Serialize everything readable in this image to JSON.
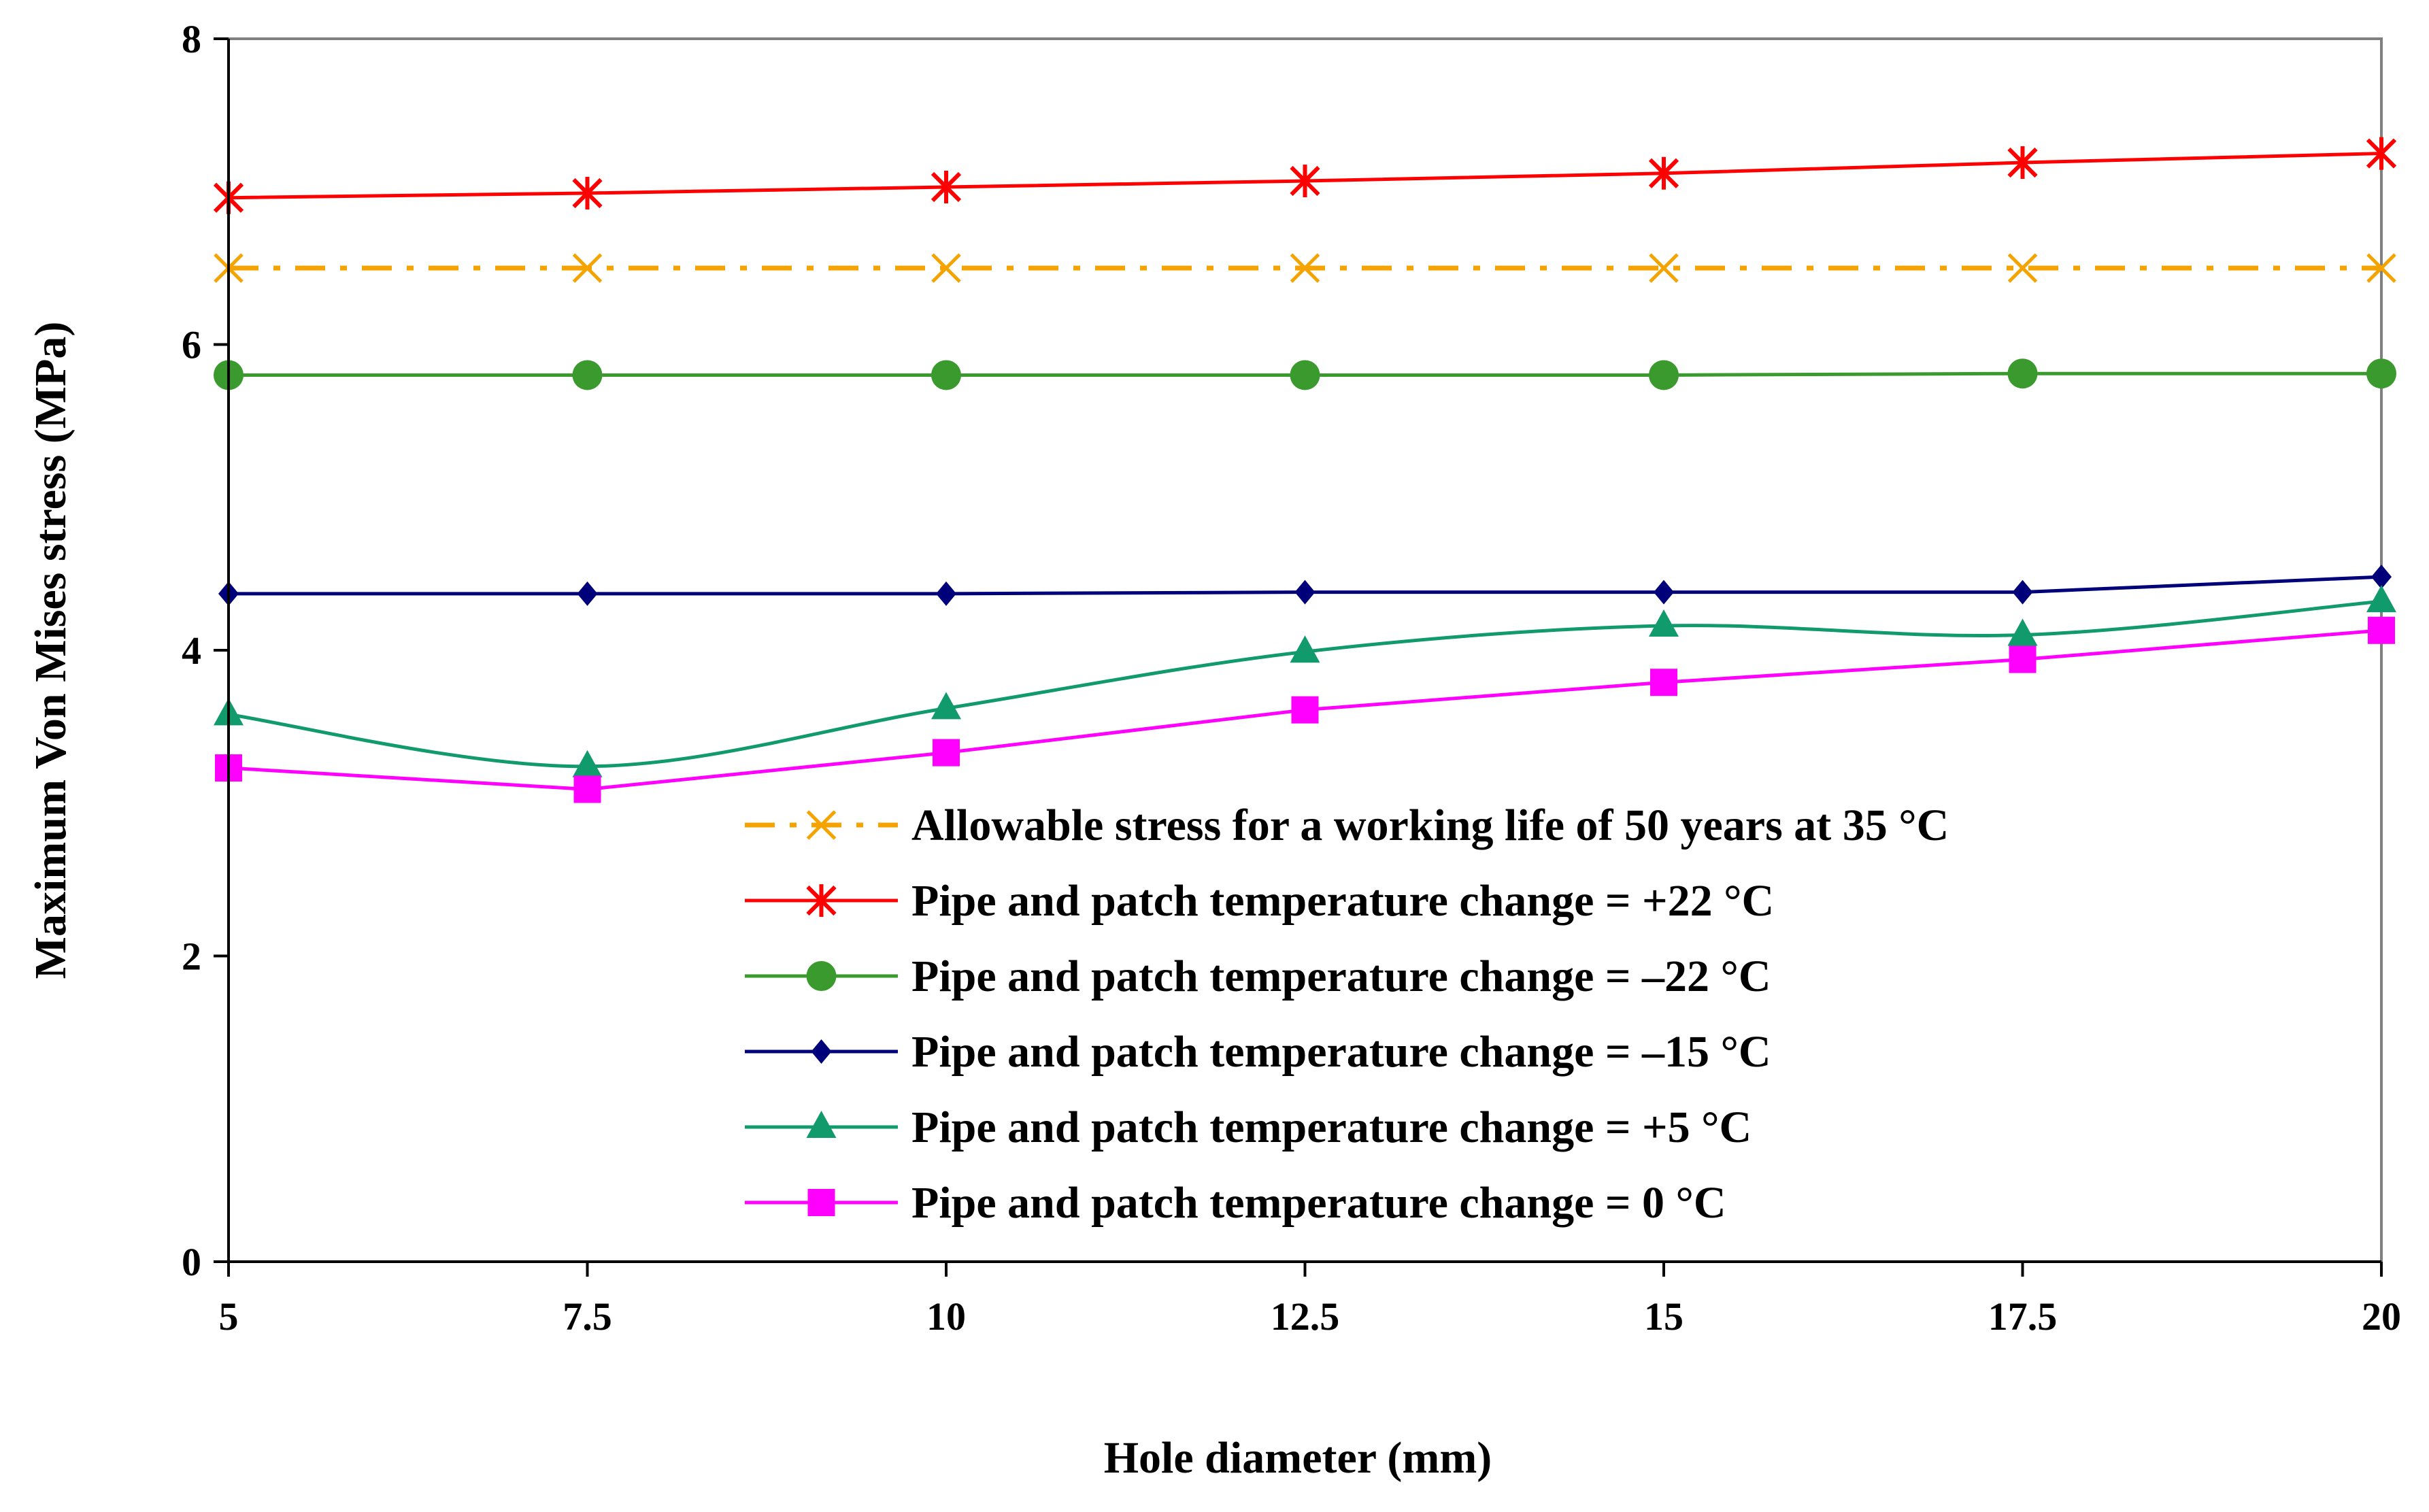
{
  "chart_data": {
    "type": "line",
    "title": "",
    "xlabel": "Hole diameter (mm)",
    "ylabel": "Maximum Von Mises stress (MPa)",
    "xlim": [
      5,
      20
    ],
    "ylim": [
      0,
      8
    ],
    "x_ticks": [
      "5",
      "7.5",
      "10",
      "12.5",
      "15",
      "17.5",
      "20"
    ],
    "y_ticks": [
      "0",
      "2",
      "4",
      "6",
      "8"
    ],
    "x": [
      5,
      7.5,
      10,
      12.5,
      15,
      17.5,
      20
    ],
    "grid": false,
    "legend_position": "bottom-right",
    "series": [
      {
        "name": "Allowable stress for a working life of 50 years at 35 °C",
        "values": [
          6.5,
          6.5,
          6.5,
          6.5,
          6.5,
          6.5,
          6.5
        ],
        "color": "#F5A300",
        "marker": "x",
        "dash": "dashdot",
        "smooth": false
      },
      {
        "name": "Pipe and patch temperature change = +22 °C",
        "values": [
          6.96,
          6.99,
          7.03,
          7.07,
          7.12,
          7.19,
          7.25
        ],
        "color": "#FF0000",
        "marker": "asterisk",
        "dash": "solid",
        "smooth": false
      },
      {
        "name": "Pipe and patch temperature change = –22 °C",
        "values": [
          5.8,
          5.8,
          5.8,
          5.8,
          5.8,
          5.81,
          5.81
        ],
        "color": "#3A9A2E",
        "marker": "circle",
        "dash": "solid",
        "smooth": false
      },
      {
        "name": "Pipe and patch temperature change = –15 °C",
        "values": [
          4.37,
          4.37,
          4.37,
          4.38,
          4.38,
          4.38,
          4.48
        ],
        "color": "#00007A",
        "marker": "diamond",
        "dash": "solid",
        "smooth": false
      },
      {
        "name": "Pipe and patch temperature change = +5 °C",
        "values": [
          3.58,
          3.24,
          3.62,
          3.99,
          4.16,
          4.1,
          4.32
        ],
        "color": "#119A6C",
        "marker": "triangle",
        "dash": "solid",
        "smooth": true
      },
      {
        "name": "Pipe and patch temperature change = 0 °C",
        "values": [
          3.23,
          3.09,
          3.33,
          3.61,
          3.79,
          3.94,
          4.13
        ],
        "color": "#FF00FF",
        "marker": "square",
        "dash": "solid",
        "smooth": false
      }
    ]
  }
}
